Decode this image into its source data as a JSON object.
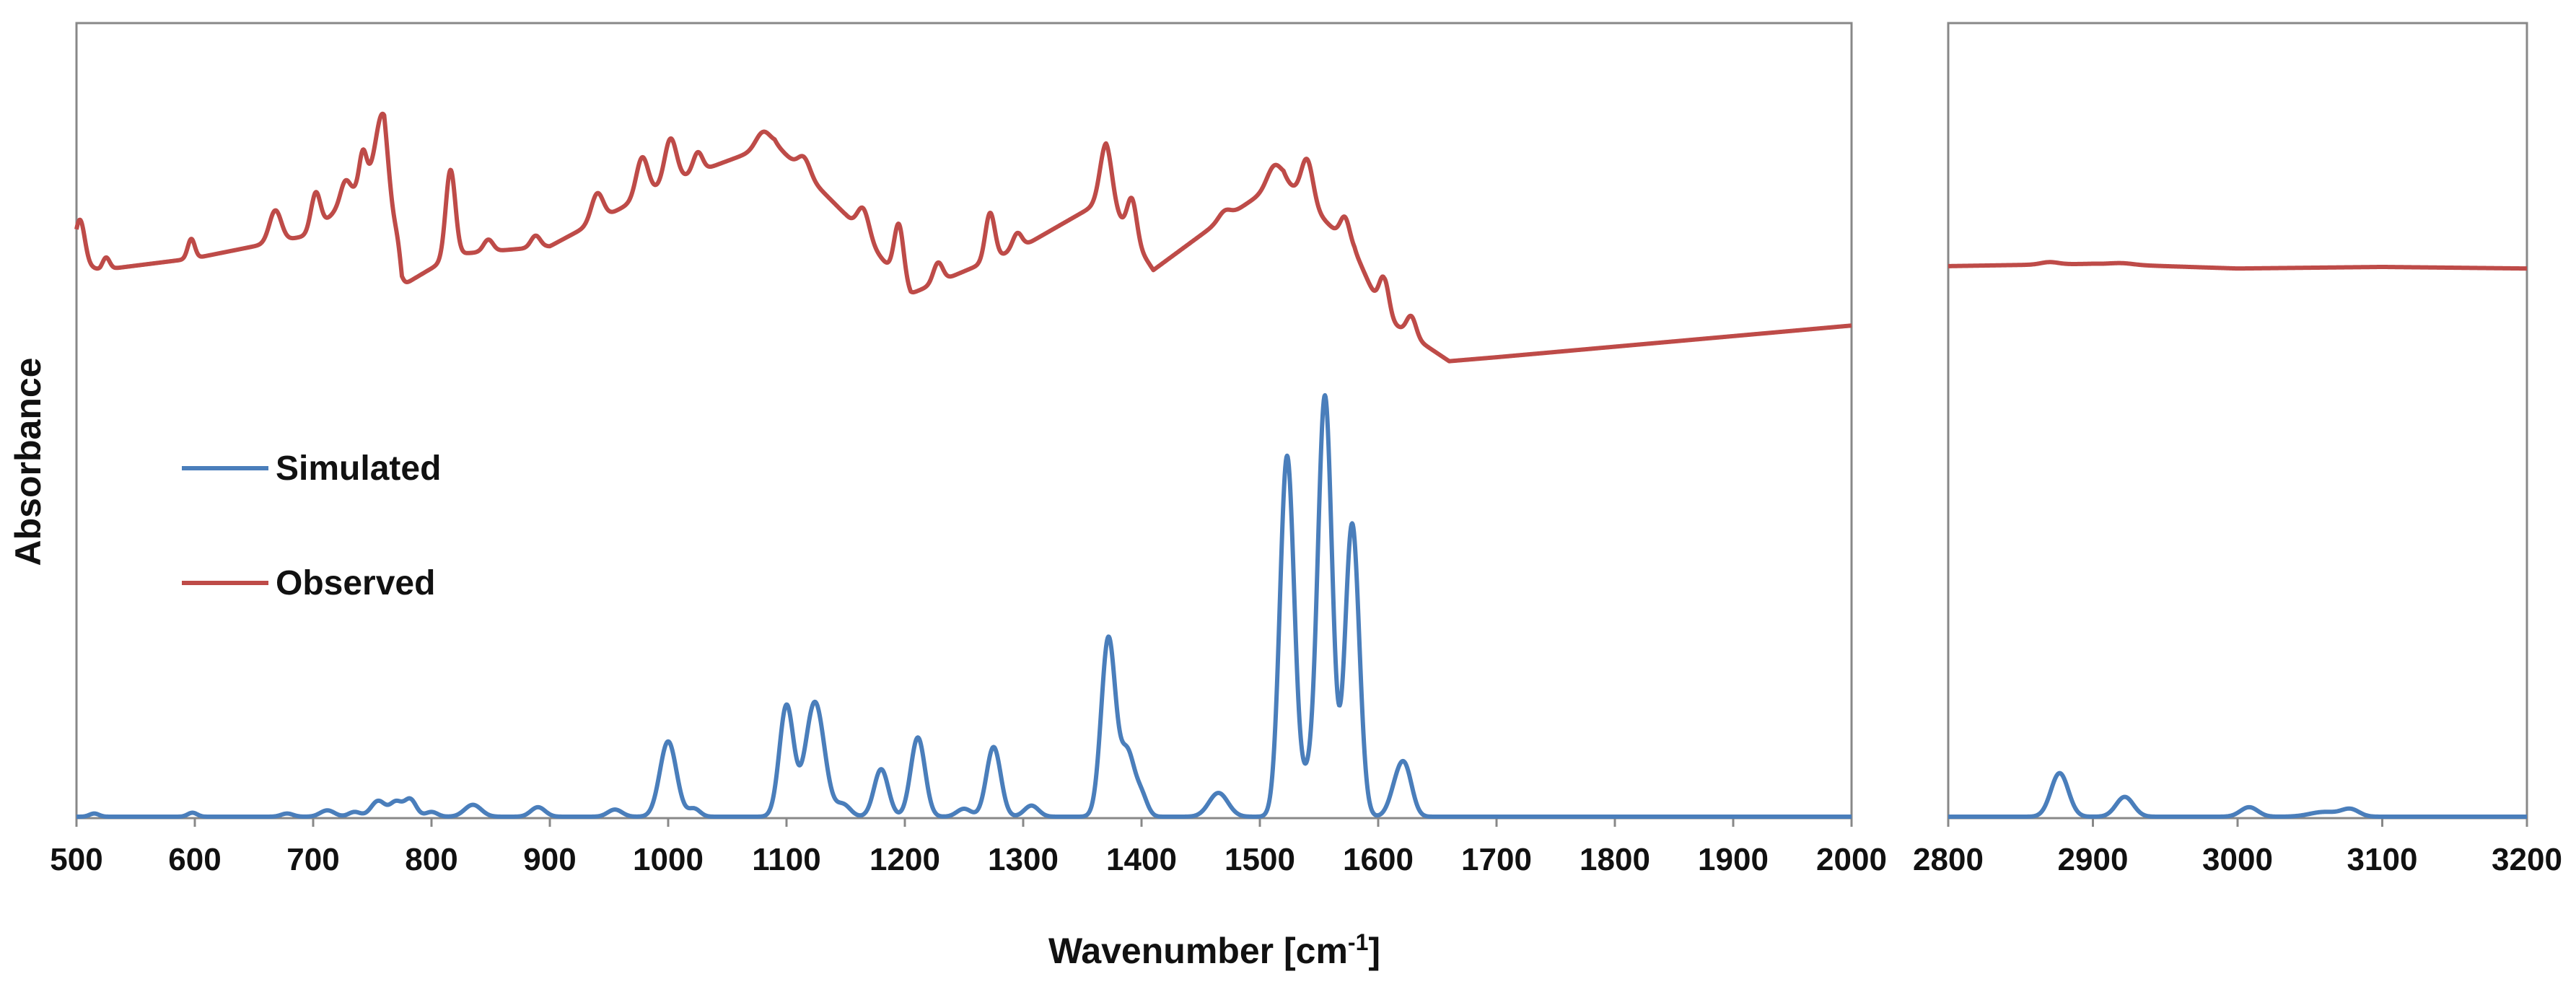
{
  "chart_data": {
    "type": "line",
    "xlabel": "Wavenumber [cm",
    "xlabel_superscript": "-1",
    "xlabel_suffix": "]",
    "ylabel": "Absorbance",
    "y_ticks_shown": false,
    "panels": [
      {
        "xlim": [
          500,
          2000
        ],
        "x_ticks": [
          "500",
          "600",
          "700",
          "800",
          "900",
          "1000",
          "1100",
          "1200",
          "1300",
          "1400",
          "1500",
          "1600",
          "1700",
          "1800",
          "1900",
          "2000"
        ]
      },
      {
        "xlim": [
          2800,
          3200
        ],
        "x_ticks": [
          "2800",
          "2900",
          "3000",
          "3100",
          "3200"
        ]
      }
    ],
    "legend": {
      "placement": "left-middle",
      "entries": [
        "Simulated",
        "Observed"
      ]
    },
    "series": [
      {
        "name": "Simulated",
        "color": "#4a7ebb",
        "baseline": 0.0,
        "peaks": [
          [
            515,
            0.004,
            4
          ],
          [
            598,
            0.005,
            4
          ],
          [
            678,
            0.004,
            5
          ],
          [
            712,
            0.008,
            6
          ],
          [
            735,
            0.006,
            5
          ],
          [
            755,
            0.02,
            6
          ],
          [
            770,
            0.018,
            5
          ],
          [
            782,
            0.022,
            5
          ],
          [
            800,
            0.006,
            5
          ],
          [
            835,
            0.015,
            7
          ],
          [
            890,
            0.012,
            6
          ],
          [
            955,
            0.009,
            6
          ],
          [
            1000,
            0.095,
            7
          ],
          [
            1022,
            0.01,
            5
          ],
          [
            1100,
            0.14,
            6
          ],
          [
            1124,
            0.145,
            8
          ],
          [
            1148,
            0.015,
            6
          ],
          [
            1180,
            0.06,
            6
          ],
          [
            1211,
            0.1,
            6
          ],
          [
            1250,
            0.01,
            6
          ],
          [
            1275,
            0.088,
            6
          ],
          [
            1307,
            0.014,
            6
          ],
          [
            1372,
            0.225,
            6
          ],
          [
            1388,
            0.08,
            6
          ],
          [
            1400,
            0.025,
            5
          ],
          [
            1465,
            0.03,
            8
          ],
          [
            1523,
            0.455,
            6
          ],
          [
            1540,
            0.04,
            6
          ],
          [
            1555,
            0.53,
            6
          ],
          [
            1578,
            0.37,
            6
          ],
          [
            1615,
            0.03,
            6
          ],
          [
            1623,
            0.055,
            6
          ],
          [
            2877,
            0.055,
            6
          ],
          [
            2922,
            0.025,
            6
          ],
          [
            3008,
            0.012,
            6
          ],
          [
            3060,
            0.006,
            10
          ],
          [
            3078,
            0.009,
            6
          ]
        ]
      },
      {
        "name": "Observed",
        "color": "#be4b48",
        "baseline_points": [
          [
            500,
            0.7
          ],
          [
            520,
            0.69
          ],
          [
            600,
            0.705
          ],
          [
            700,
            0.735
          ],
          [
            760,
            0.83
          ],
          [
            775,
            0.67
          ],
          [
            820,
            0.71
          ],
          [
            900,
            0.72
          ],
          [
            1000,
            0.8
          ],
          [
            1090,
            0.85
          ],
          [
            1150,
            0.76
          ],
          [
            1205,
            0.66
          ],
          [
            1300,
            0.72
          ],
          [
            1370,
            0.78
          ],
          [
            1410,
            0.69
          ],
          [
            1460,
            0.745
          ],
          [
            1520,
            0.805
          ],
          [
            1580,
            0.715
          ],
          [
            1605,
            0.63
          ],
          [
            1660,
            0.575
          ],
          [
            1700,
            0.58
          ],
          [
            2000,
            0.62
          ],
          [
            2800,
            0.695
          ],
          [
            2900,
            0.698
          ],
          [
            3000,
            0.692
          ],
          [
            3100,
            0.694
          ],
          [
            3200,
            0.692
          ]
        ],
        "peaks": [
          [
            503,
            0.055,
            4
          ],
          [
            525,
            0.015,
            3
          ],
          [
            597,
            0.025,
            3
          ],
          [
            668,
            0.04,
            5
          ],
          [
            702,
            0.05,
            4
          ],
          [
            727,
            0.025,
            4
          ],
          [
            742,
            0.04,
            3
          ],
          [
            758,
            0.06,
            5
          ],
          [
            772,
            0.02,
            3
          ],
          [
            816,
            0.11,
            4
          ],
          [
            848,
            0.015,
            4
          ],
          [
            888,
            0.015,
            4
          ],
          [
            940,
            0.035,
            5
          ],
          [
            978,
            0.05,
            5
          ],
          [
            1002,
            0.055,
            5
          ],
          [
            1025,
            0.025,
            4
          ],
          [
            1080,
            0.02,
            6
          ],
          [
            1115,
            0.02,
            5
          ],
          [
            1165,
            0.035,
            5
          ],
          [
            1195,
            0.07,
            4
          ],
          [
            1228,
            0.025,
            4
          ],
          [
            1272,
            0.06,
            4
          ],
          [
            1295,
            0.02,
            4
          ],
          [
            1370,
            0.07,
            5
          ],
          [
            1392,
            0.05,
            4
          ],
          [
            1470,
            0.01,
            5
          ],
          [
            1512,
            0.025,
            6
          ],
          [
            1540,
            0.055,
            5
          ],
          [
            1572,
            0.03,
            4
          ],
          [
            1605,
            0.05,
            4
          ],
          [
            1628,
            0.025,
            4
          ],
          [
            2870,
            0.003,
            6
          ],
          [
            2920,
            0.002,
            8
          ]
        ]
      }
    ]
  }
}
